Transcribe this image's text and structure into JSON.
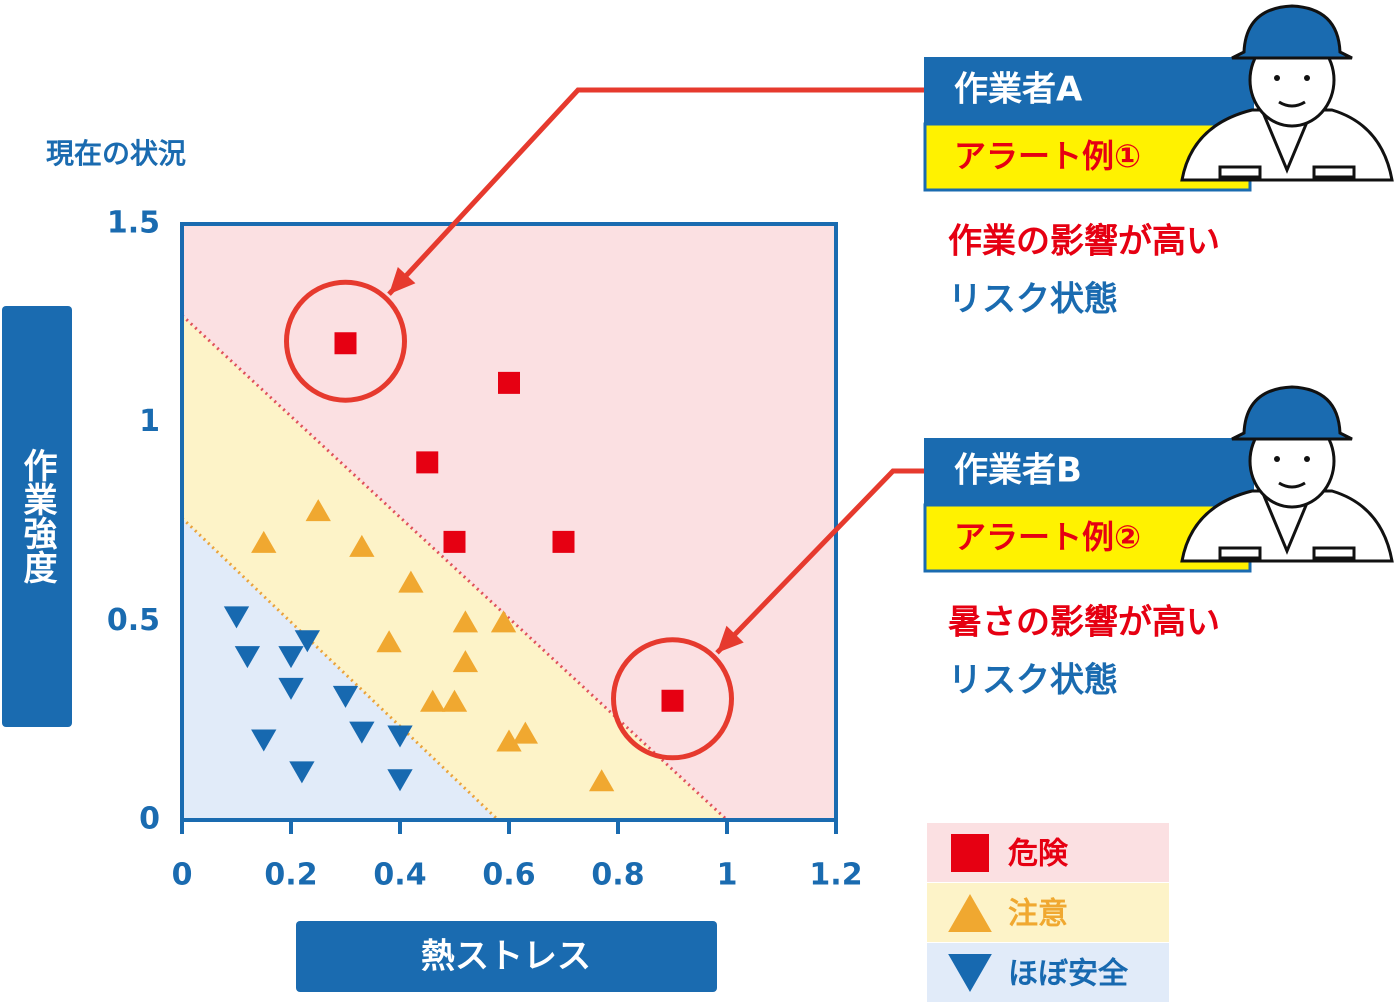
{
  "chart_data": {
    "type": "scatter",
    "title": "現在の状況",
    "x_label": "熱ストレス",
    "y_label": "作業強度",
    "xlim": [
      0,
      1.2
    ],
    "ylim": [
      0,
      1.5
    ],
    "xticks": [
      0,
      0.2,
      0.4,
      0.6,
      0.8,
      1,
      1.2
    ],
    "yticks": [
      0,
      0.5,
      1,
      1.5
    ],
    "series": [
      {
        "name": "危険",
        "color": "#e60012",
        "zone_color": "#fbe0e2",
        "marker": "square",
        "x": [
          0.3,
          0.6,
          0.45,
          0.5,
          0.7,
          0.9
        ],
        "y": [
          1.2,
          1.1,
          0.9,
          0.7,
          0.7,
          0.3
        ]
      },
      {
        "name": "注意",
        "color": "#f0a830",
        "zone_color": "#fdf3c8",
        "marker": "triangle-up",
        "x": [
          0.25,
          0.15,
          0.33,
          0.42,
          0.52,
          0.59,
          0.38,
          0.52,
          0.46,
          0.5,
          0.6,
          0.63,
          0.77
        ],
        "y": [
          0.78,
          0.7,
          0.69,
          0.6,
          0.5,
          0.5,
          0.45,
          0.4,
          0.3,
          0.3,
          0.2,
          0.22,
          0.1
        ]
      },
      {
        "name": "ほぼ安全",
        "color": "#1769b0",
        "zone_color": "#e1ebf9",
        "marker": "triangle-down",
        "x": [
          0.1,
          0.12,
          0.2,
          0.23,
          0.2,
          0.3,
          0.33,
          0.4,
          0.15,
          0.22,
          0.4
        ],
        "y": [
          0.51,
          0.41,
          0.41,
          0.45,
          0.33,
          0.31,
          0.22,
          0.21,
          0.2,
          0.12,
          0.1
        ]
      }
    ],
    "boundaries": [
      {
        "color": "#e0505a",
        "x": [
          0,
          1
        ],
        "y": [
          1.27,
          0
        ]
      },
      {
        "color": "#eaa23a",
        "x": [
          0,
          0.58
        ],
        "y": [
          0.76,
          0
        ]
      }
    ],
    "annotations": [
      {
        "worker": "作業者A",
        "alert": "アラート例①",
        "lines": [
          "作業の影響が高い",
          "リスク状態"
        ]
      },
      {
        "worker": "作業者B",
        "alert": "アラート例②",
        "lines": [
          "暑さの影響が高い",
          "リスク状態"
        ]
      }
    ]
  }
}
